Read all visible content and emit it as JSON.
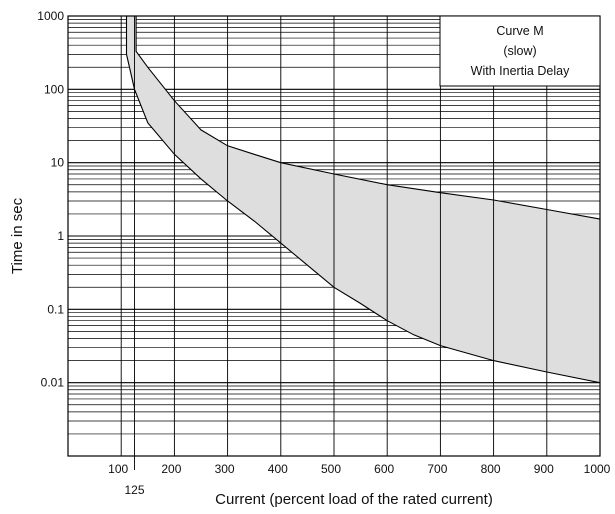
{
  "chart_data": {
    "type": "area",
    "title": "",
    "xlabel": "Current (percent load of the rated current)",
    "ylabel": "Time in sec",
    "x_scale": "linear",
    "y_scale": "log",
    "xlim": [
      0,
      1000
    ],
    "ylim": [
      0.001,
      1000
    ],
    "grid": true,
    "x_ticks": [
      100,
      200,
      300,
      400,
      500,
      600,
      700,
      800,
      900,
      1000
    ],
    "x_tick_labels": [
      "100",
      "200",
      "300",
      "400",
      "500",
      "600",
      "700",
      "800",
      "900",
      "1000"
    ],
    "x_extra_tick": {
      "value": 125,
      "label": "125"
    },
    "y_ticks": [
      1000,
      100,
      10,
      1,
      0.1,
      0.01
    ],
    "y_tick_labels": [
      "1000",
      "100",
      "10",
      "1",
      "0.1",
      "0.01"
    ],
    "legend_position": "top-right",
    "legend_lines": [
      "Curve M",
      "(slow)",
      "With Inertia Delay"
    ],
    "fill_color": "#dedede",
    "series": [
      {
        "name": "",
        "values": [
          {
            "x": 128,
            "y": 1000
          },
          {
            "x": 128,
            "y": 330
          },
          {
            "x": 150,
            "y": 200
          },
          {
            "x": 200,
            "y": 70
          },
          {
            "x": 250,
            "y": 28
          },
          {
            "x": 300,
            "y": 17
          },
          {
            "x": 350,
            "y": 13
          },
          {
            "x": 400,
            "y": 10
          },
          {
            "x": 500,
            "y": 7
          },
          {
            "x": 600,
            "y": 5
          },
          {
            "x": 700,
            "y": 3.9
          },
          {
            "x": 800,
            "y": 3.1
          },
          {
            "x": 900,
            "y": 2.3
          },
          {
            "x": 1000,
            "y": 1.7
          }
        ]
      },
      {
        "name": "",
        "values": [
          {
            "x": 110,
            "y": 1000
          },
          {
            "x": 110,
            "y": 300
          },
          {
            "x": 125,
            "y": 100
          },
          {
            "x": 150,
            "y": 35
          },
          {
            "x": 200,
            "y": 13
          },
          {
            "x": 250,
            "y": 6
          },
          {
            "x": 300,
            "y": 3
          },
          {
            "x": 350,
            "y": 1.6
          },
          {
            "x": 400,
            "y": 0.8
          },
          {
            "x": 450,
            "y": 0.4
          },
          {
            "x": 500,
            "y": 0.2
          },
          {
            "x": 550,
            "y": 0.12
          },
          {
            "x": 600,
            "y": 0.07
          },
          {
            "x": 650,
            "y": 0.045
          },
          {
            "x": 700,
            "y": 0.032
          },
          {
            "x": 800,
            "y": 0.02
          },
          {
            "x": 900,
            "y": 0.014
          },
          {
            "x": 1000,
            "y": 0.01
          }
        ]
      }
    ]
  }
}
